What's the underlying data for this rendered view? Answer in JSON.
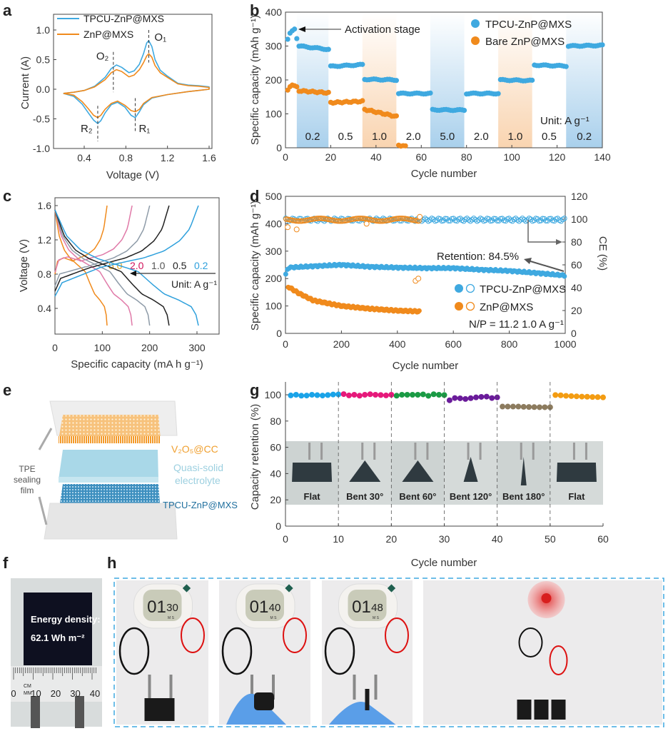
{
  "panel_labels": {
    "a": "a",
    "b": "b",
    "c": "c",
    "d": "d",
    "e": "e",
    "f": "f",
    "g": "g",
    "h": "h"
  },
  "colors": {
    "tpcu": "#3fa9e0",
    "znp": "#f08a1c",
    "band_blue": "#a9d0ec",
    "band_orange": "#f9dcc0"
  },
  "chart_data": [
    {
      "id": "a",
      "type": "line",
      "xlabel": "Voltage (V)",
      "ylabel": "Current (A)",
      "xlim": [
        0.1,
        1.65
      ],
      "ylim": [
        -1.0,
        1.25
      ],
      "xticks": [
        "0.4",
        "0.8",
        "1.2",
        "1.6"
      ],
      "xtick_values": [
        0.4,
        0.8,
        1.2,
        1.6
      ],
      "yticks": [
        "1.0",
        "0.5",
        "0.0",
        "-0.5",
        "-1.0"
      ],
      "ytick_values": [
        1.0,
        0.5,
        0.0,
        -0.5,
        -1.0
      ],
      "legend": "top-left",
      "series": [
        {
          "name": "TPCU-ZnP@MXS",
          "color": "#3fa9e0",
          "points": [
            [
              0.2,
              -0.07
            ],
            [
              0.3,
              -0.05
            ],
            [
              0.4,
              -0.02
            ],
            [
              0.5,
              0.05
            ],
            [
              0.6,
              0.2
            ],
            [
              0.66,
              0.35
            ],
            [
              0.71,
              0.41
            ],
            [
              0.76,
              0.37
            ],
            [
              0.83,
              0.28
            ],
            [
              0.88,
              0.31
            ],
            [
              0.93,
              0.42
            ],
            [
              0.97,
              0.6
            ],
            [
              1.0,
              0.78
            ],
            [
              1.02,
              0.82
            ],
            [
              1.05,
              0.72
            ],
            [
              1.08,
              0.5
            ],
            [
              1.13,
              0.32
            ],
            [
              1.2,
              0.22
            ],
            [
              1.3,
              0.1
            ],
            [
              1.4,
              0.07
            ],
            [
              1.5,
              0.06
            ],
            [
              1.6,
              0.04
            ],
            [
              1.6,
              0.0
            ],
            [
              1.5,
              -0.02
            ],
            [
              1.4,
              -0.04
            ],
            [
              1.2,
              -0.09
            ],
            [
              1.05,
              -0.15
            ],
            [
              0.97,
              -0.26
            ],
            [
              0.93,
              -0.38
            ],
            [
              0.89,
              -0.48
            ],
            [
              0.85,
              -0.44
            ],
            [
              0.79,
              -0.3
            ],
            [
              0.72,
              -0.22
            ],
            [
              0.66,
              -0.26
            ],
            [
              0.6,
              -0.4
            ],
            [
              0.56,
              -0.53
            ],
            [
              0.53,
              -0.58
            ],
            [
              0.49,
              -0.52
            ],
            [
              0.44,
              -0.4
            ],
            [
              0.38,
              -0.25
            ],
            [
              0.3,
              -0.12
            ],
            [
              0.2,
              -0.07
            ]
          ]
        },
        {
          "name": "ZnP@MXS",
          "color": "#f08a1c",
          "points": [
            [
              0.2,
              -0.07
            ],
            [
              0.3,
              -0.05
            ],
            [
              0.4,
              -0.02
            ],
            [
              0.5,
              0.04
            ],
            [
              0.6,
              0.16
            ],
            [
              0.66,
              0.28
            ],
            [
              0.71,
              0.33
            ],
            [
              0.76,
              0.3
            ],
            [
              0.83,
              0.21
            ],
            [
              0.88,
              0.24
            ],
            [
              0.93,
              0.33
            ],
            [
              0.97,
              0.45
            ],
            [
              1.0,
              0.56
            ],
            [
              1.02,
              0.6
            ],
            [
              1.05,
              0.54
            ],
            [
              1.08,
              0.4
            ],
            [
              1.13,
              0.28
            ],
            [
              1.2,
              0.2
            ],
            [
              1.3,
              0.09
            ],
            [
              1.4,
              0.06
            ],
            [
              1.5,
              0.05
            ],
            [
              1.6,
              0.03
            ],
            [
              1.6,
              0.0
            ],
            [
              1.5,
              -0.02
            ],
            [
              1.4,
              -0.04
            ],
            [
              1.2,
              -0.09
            ],
            [
              1.05,
              -0.14
            ],
            [
              0.97,
              -0.24
            ],
            [
              0.93,
              -0.34
            ],
            [
              0.89,
              -0.38
            ],
            [
              0.85,
              -0.36
            ],
            [
              0.79,
              -0.27
            ],
            [
              0.72,
              -0.2
            ],
            [
              0.66,
              -0.24
            ],
            [
              0.6,
              -0.34
            ],
            [
              0.56,
              -0.44
            ],
            [
              0.53,
              -0.48
            ],
            [
              0.49,
              -0.44
            ],
            [
              0.44,
              -0.33
            ],
            [
              0.38,
              -0.21
            ],
            [
              0.3,
              -0.1
            ],
            [
              0.2,
              -0.07
            ]
          ]
        }
      ],
      "peaks": [
        {
          "label": "O₁",
          "x": 1.02,
          "y_from": 1.0,
          "y_to": 0.45
        },
        {
          "label": "O₂",
          "x": 0.68,
          "y_from": 0.63,
          "y_to": -0.05
        },
        {
          "label": "R₂",
          "x": 0.53,
          "y_from": -0.28,
          "y_to": -0.88
        },
        {
          "label": "R₁",
          "x": 0.89,
          "y_from": -0.15,
          "y_to": -0.74
        }
      ]
    },
    {
      "id": "b",
      "type": "scatter",
      "xlabel": "Cycle number",
      "ylabel": "Specific capacity (mAh g⁻¹)",
      "xlim": [
        0,
        140
      ],
      "ylim": [
        0,
        400
      ],
      "xticks": [
        "0",
        "20",
        "40",
        "60",
        "80",
        "100",
        "120",
        "140"
      ],
      "yticks": [
        "0",
        "100",
        "200",
        "300",
        "400"
      ],
      "legend": "top-right",
      "series_names": [
        "TPCU-ZnP@MXS",
        "Bare ZnP@MXS"
      ],
      "annotation": "Activation stage",
      "unit_label": "Unit: A g⁻¹",
      "activation": {
        "cycles": [
          1,
          2,
          3,
          4,
          5
        ],
        "tpcu": [
          320,
          338,
          345,
          350,
          322
        ],
        "bare": [
          170,
          180,
          185,
          183,
          180
        ]
      },
      "segments": [
        {
          "rate": "0.2",
          "band": "blue",
          "cycles": [
            6,
            19
          ],
          "tpcu": [
            300,
            290
          ],
          "bare": [
            168,
            162
          ]
        },
        {
          "rate": "0.5",
          "band": "none",
          "cycles": [
            20,
            34
          ],
          "tpcu": [
            240,
            245
          ],
          "bare": [
            133,
            137
          ]
        },
        {
          "rate": "1.0",
          "band": "orange",
          "cycles": [
            35,
            49
          ],
          "tpcu": [
            202,
            200
          ],
          "bare": [
            113,
            92
          ]
        },
        {
          "rate": "2.0",
          "band": "none",
          "cycles": [
            50,
            64
          ],
          "tpcu": [
            160,
            160
          ],
          "bare": [
            8,
            4
          ],
          "bare_cycles": [
            50,
            53
          ]
        },
        {
          "rate": "5.0",
          "band": "blue",
          "cycles": [
            65,
            79
          ],
          "tpcu": [
            112,
            111
          ],
          "bare": null
        },
        {
          "rate": "2.0",
          "band": "none",
          "cycles": [
            80,
            94
          ],
          "tpcu": [
            160,
            160
          ],
          "bare": null
        },
        {
          "rate": "1.0",
          "band": "orange",
          "cycles": [
            95,
            109
          ],
          "tpcu": [
            200,
            198
          ],
          "bare": null
        },
        {
          "rate": "0.5",
          "band": "none",
          "cycles": [
            110,
            124
          ],
          "tpcu": [
            244,
            241
          ],
          "bare": null
        },
        {
          "rate": "0.2",
          "band": "blue",
          "cycles": [
            125,
            140
          ],
          "tpcu": [
            300,
            302
          ],
          "bare": null
        }
      ]
    },
    {
      "id": "c",
      "type": "line",
      "xlabel": "Specific capacity (mA h g⁻¹)",
      "ylabel": "Voltage (V)",
      "xlim": [
        0,
        350
      ],
      "ylim": [
        0.2,
        1.65
      ],
      "xticks": [
        "0",
        "100",
        "200",
        "300"
      ],
      "yticks": [
        "1.6",
        "1.2",
        "0.8",
        "0.4"
      ],
      "unit_label": "Unit: A g⁻¹",
      "series": [
        {
          "name": "5.0",
          "color": "#f08a1c",
          "label_color": "#e8a317",
          "capacity": 110,
          "charge_start_v": 0.8
        },
        {
          "name": "2.0",
          "color": "#e07aa8",
          "label_color": "#d0105a",
          "capacity": 163,
          "charge_start_v": 0.82
        },
        {
          "name": "1.0",
          "color": "#8e9ba8",
          "label_color": "#555555",
          "capacity": 200,
          "charge_start_v": 0.66
        },
        {
          "name": "0.5",
          "color": "#222222",
          "label_color": "#222222",
          "capacity": 241,
          "charge_start_v": 0.6
        },
        {
          "name": "0.2",
          "color": "#2ea0dc",
          "label_color": "#2ea0dc",
          "capacity": 303,
          "charge_start_v": 0.54
        }
      ]
    },
    {
      "id": "d",
      "type": "scatter",
      "xlabel": "Cycle number",
      "ylabel": "Specific capacity (mAh g⁻¹)",
      "y2label": "CE (%)",
      "xlim": [
        0,
        1000
      ],
      "ylim": [
        0,
        500
      ],
      "y2lim": [
        0,
        120
      ],
      "xticks": [
        "0",
        "200",
        "400",
        "600",
        "800",
        "1000"
      ],
      "yticks": [
        "0",
        "100",
        "200",
        "300",
        "400",
        "500"
      ],
      "y2ticks": [
        "0",
        "20",
        "40",
        "60",
        "80",
        "100",
        "120"
      ],
      "retention_label": "Retention: 84.5%",
      "condition_label": "N/P = 11.2  1.0 A g⁻¹",
      "legend": "bottom-right",
      "series": [
        {
          "name": "TPCU-ZnP@MXS",
          "color": "#3fa9e0",
          "capacity": [
            [
              1,
              215
            ],
            [
              10,
              240
            ],
            [
              100,
              245
            ],
            [
              200,
              250
            ],
            [
              300,
              243
            ],
            [
              400,
              240
            ],
            [
              500,
              238
            ],
            [
              600,
              238
            ],
            [
              700,
              232
            ],
            [
              800,
              228
            ],
            [
              900,
              220
            ],
            [
              1000,
              211
            ]
          ],
          "ce": [
            [
              1,
              98
            ],
            [
              1000,
              99.5
            ]
          ]
        },
        {
          "name": "ZnP@MXS",
          "color": "#f08a1c",
          "capacity": [
            [
              10,
              170
            ],
            [
              50,
              145
            ],
            [
              100,
              120
            ],
            [
              200,
              100
            ],
            [
              300,
              90
            ],
            [
              400,
              83
            ],
            [
              480,
              80
            ]
          ],
          "ce": [
            [
              1,
              99
            ],
            [
              480,
              99.5
            ]
          ],
          "ce_outliers": [
            [
              8,
              93
            ],
            [
              40,
              91
            ],
            [
              290,
              96
            ],
            [
              465,
              46
            ],
            [
              475,
              48
            ],
            [
              480,
              102
            ]
          ]
        }
      ]
    },
    {
      "id": "g",
      "type": "scatter",
      "xlabel": "Cycle number",
      "ylabel": "Capacity retention (%)",
      "xlim": [
        0,
        60
      ],
      "ylim": [
        0,
        110
      ],
      "xticks": [
        "0",
        "10",
        "20",
        "30",
        "40",
        "50",
        "60"
      ],
      "yticks": [
        "0",
        "20",
        "40",
        "60",
        "80",
        "100"
      ],
      "series": [
        {
          "name": "Flat",
          "color": "#1aa3e8",
          "values": [
            99.5,
            100,
            99.3,
            99.4,
            100,
            99.7,
            99.4,
            99.8,
            100.2,
            100.3
          ]
        },
        {
          "name": "Bent 30°",
          "color": "#e6197a",
          "values": [
            100.5,
            99.5,
            100,
            99.3,
            100,
            100.4,
            100,
            99.8,
            99.5,
            100
          ]
        },
        {
          "name": "Bent 60°",
          "color": "#1a9a44",
          "values": [
            99.3,
            100,
            100,
            100,
            100,
            100.3,
            99.2,
            100.4,
            100,
            99.8
          ]
        },
        {
          "name": "Bent 120°",
          "color": "#6a1b9a",
          "values": [
            95.8,
            97.5,
            97.3,
            96.8,
            97.4,
            98,
            98.4,
            98.6,
            97.5,
            98
          ]
        },
        {
          "name": "Bent 180°",
          "color": "#8c7b5e",
          "values": [
            91,
            91,
            91,
            91,
            90.8,
            90.7,
            90.6,
            90.5,
            90.5,
            90.5
          ]
        },
        {
          "name": "Flat",
          "color": "#f39c12",
          "values": [
            99.8,
            99.6,
            99.2,
            99,
            98.8,
            98.6,
            98.5,
            98.3,
            98.2,
            98
          ]
        }
      ]
    }
  ],
  "panel_e": {
    "cathode_label": "V₂O₅@CC",
    "electrolyte_label_1": "Quasi-solid",
    "electrolyte_label_2": "electrolyte",
    "anode_label": "TPCU-ZnP@MXS",
    "film_label_1": "TPE",
    "film_label_2": "sealing",
    "film_label_3": "film"
  },
  "panel_f": {
    "energy_label": "Energy density:",
    "energy_value": "62.1 Wh m⁻²",
    "ruler_unit_cm": "CM",
    "ruler_unit_mm": "MM",
    "ruler_numbers": [
      "0",
      "10",
      "20",
      "30",
      "40"
    ]
  },
  "panel_h": {
    "timer_readings": [
      {
        "min": "01",
        "sec": "30"
      },
      {
        "min": "01",
        "sec": "40"
      },
      {
        "min": "01",
        "sec": "48"
      }
    ],
    "timer_unit": "M S"
  }
}
